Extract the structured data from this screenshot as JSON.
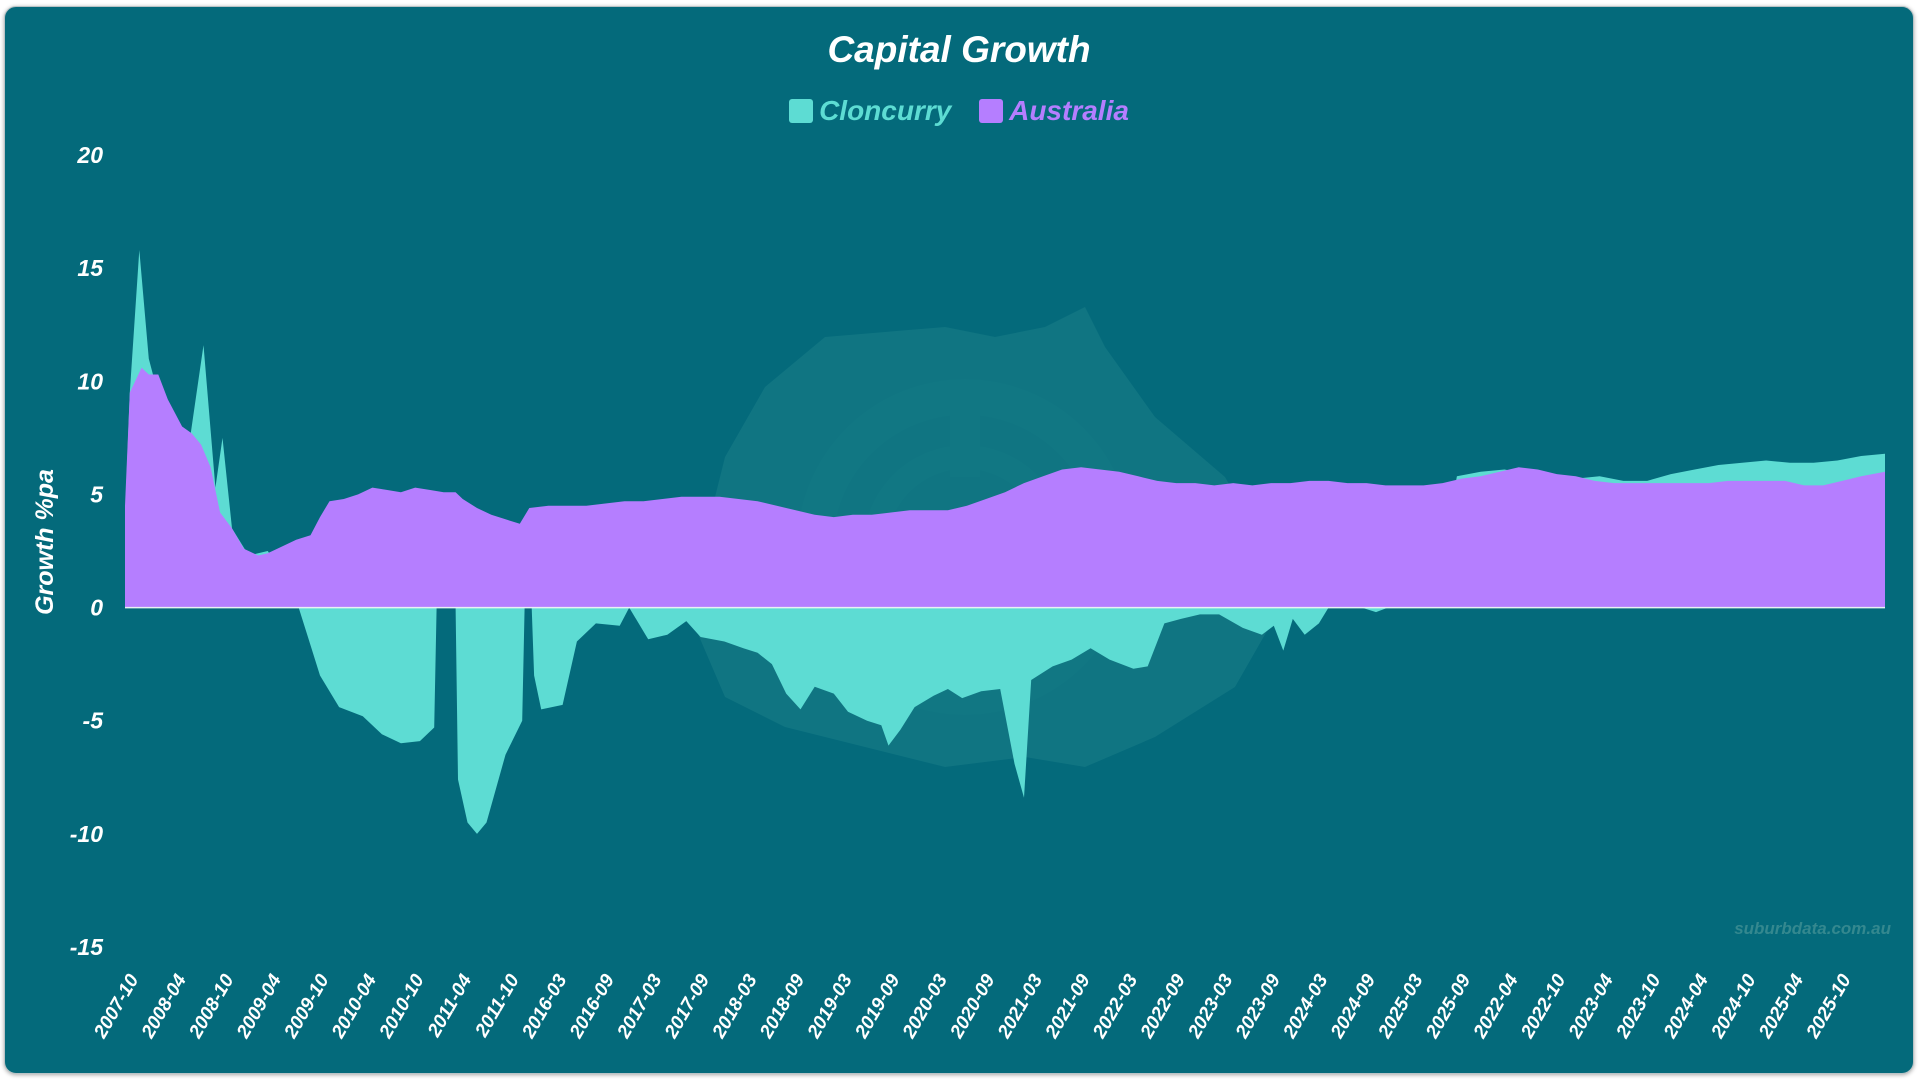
{
  "chart_data": {
    "type": "area",
    "title": "Capital Growth",
    "xlabel": "",
    "ylabel": "Growth %pa",
    "ylim": [
      -15,
      20
    ],
    "yticks": [
      20,
      15,
      10,
      5,
      0,
      -5,
      -10,
      -15
    ],
    "x_tick_labels": [
      "2007-10",
      "2008-04",
      "2008-10",
      "2009-04",
      "2009-10",
      "2010-04",
      "2010-10",
      "2011-04",
      "2011-10",
      "2016-03",
      "2016-09",
      "2017-03",
      "2017-09",
      "2018-03",
      "2018-09",
      "2019-03",
      "2019-09",
      "2020-03",
      "2020-09",
      "2021-03",
      "2021-09",
      "2022-03",
      "2022-09",
      "2023-03",
      "2023-09",
      "2024-03",
      "2024-09",
      "2025-03",
      "2025-09",
      "2022-04",
      "2022-10",
      "2023-04",
      "2023-10",
      "2024-04",
      "2024-10",
      "2025-04",
      "2025-10"
    ],
    "grid": false,
    "legend_position": "top",
    "series": [
      {
        "name": "Cloncurry",
        "color": "#5ddcd3",
        "points": [
          [
            0,
            4
          ],
          [
            0.1,
            9.5
          ],
          [
            0.3,
            15.8
          ],
          [
            0.5,
            11
          ],
          [
            0.75,
            9
          ],
          [
            1,
            7.5
          ],
          [
            1.3,
            6.5
          ],
          [
            1.65,
            11.6
          ],
          [
            1.9,
            5.3
          ],
          [
            2.05,
            7.5
          ],
          [
            2.25,
            3.5
          ],
          [
            2.6,
            2.3
          ],
          [
            3,
            2.5
          ],
          [
            3.5,
            1
          ],
          [
            3.8,
            -1
          ],
          [
            4.1,
            -3
          ],
          [
            4.5,
            -4.4
          ],
          [
            5,
            -4.8
          ],
          [
            5.4,
            -5.6
          ],
          [
            5.8,
            -6
          ],
          [
            6.2,
            -5.9
          ],
          [
            6.5,
            -5.3
          ],
          [
            6.55,
            0
          ],
          [
            6.95,
            0
          ],
          [
            7,
            -7.6
          ],
          [
            7.2,
            -9.5
          ],
          [
            7.4,
            -10
          ],
          [
            7.6,
            -9.5
          ],
          [
            8,
            -6.5
          ],
          [
            8.35,
            -5
          ],
          [
            8.4,
            0
          ],
          [
            8.55,
            0
          ],
          [
            8.6,
            -3
          ],
          [
            8.75,
            -4.5
          ],
          [
            9.2,
            -4.3
          ],
          [
            9.5,
            -1.5
          ],
          [
            9.9,
            -0.7
          ],
          [
            10.4,
            -0.8
          ],
          [
            10.6,
            0
          ],
          [
            11,
            -1.4
          ],
          [
            11.4,
            -1.2
          ],
          [
            11.8,
            -0.6
          ],
          [
            12.1,
            -1.3
          ],
          [
            12.6,
            -1.5
          ],
          [
            13,
            -1.8
          ],
          [
            13.3,
            -2
          ],
          [
            13.6,
            -2.5
          ],
          [
            13.9,
            -3.8
          ],
          [
            14.2,
            -4.5
          ],
          [
            14.5,
            -3.5
          ],
          [
            14.9,
            -3.8
          ],
          [
            15.2,
            -4.6
          ],
          [
            15.6,
            -5
          ],
          [
            15.9,
            -5.2
          ],
          [
            16.05,
            -6.1
          ],
          [
            16.3,
            -5.4
          ],
          [
            16.6,
            -4.4
          ],
          [
            17,
            -3.9
          ],
          [
            17.3,
            -3.6
          ],
          [
            17.6,
            -4
          ],
          [
            18,
            -3.7
          ],
          [
            18.4,
            -3.6
          ],
          [
            18.7,
            -6.9
          ],
          [
            18.9,
            -8.4
          ],
          [
            19.05,
            -3.2
          ],
          [
            19.5,
            -2.6
          ],
          [
            19.9,
            -2.3
          ],
          [
            20.3,
            -1.8
          ],
          [
            20.7,
            -2.3
          ],
          [
            21.2,
            -2.7
          ],
          [
            21.5,
            -2.6
          ],
          [
            21.85,
            -0.7
          ],
          [
            22.2,
            -0.5
          ],
          [
            22.6,
            -0.3
          ],
          [
            23,
            -0.3
          ],
          [
            23.5,
            -0.9
          ],
          [
            23.9,
            -1.2
          ],
          [
            24.15,
            -0.8
          ],
          [
            24.35,
            -1.9
          ],
          [
            24.55,
            -0.5
          ],
          [
            24.8,
            -1.2
          ],
          [
            25.1,
            -0.7
          ],
          [
            25.3,
            0
          ],
          [
            26,
            0
          ],
          [
            26.3,
            -0.2
          ],
          [
            26.55,
            0
          ],
          [
            27.5,
            0
          ],
          [
            28,
            5.8
          ],
          [
            28.5,
            6
          ],
          [
            29,
            6.1
          ],
          [
            29.5,
            5.9
          ],
          [
            30,
            5.7
          ],
          [
            30.5,
            5.7
          ],
          [
            31,
            5.8
          ],
          [
            31.5,
            5.6
          ],
          [
            32,
            5.6
          ],
          [
            32.5,
            5.9
          ],
          [
            33,
            6.1
          ],
          [
            33.5,
            6.3
          ],
          [
            34,
            6.4
          ],
          [
            34.5,
            6.5
          ],
          [
            35,
            6.4
          ],
          [
            35.5,
            6.4
          ],
          [
            36,
            6.5
          ],
          [
            36.5,
            6.7
          ],
          [
            37,
            6.8
          ]
        ]
      },
      {
        "name": "Australia",
        "color": "#b57eff",
        "points": [
          [
            0,
            4.5
          ],
          [
            0.1,
            9.5
          ],
          [
            0.35,
            10.6
          ],
          [
            0.5,
            10.3
          ],
          [
            0.7,
            10.3
          ],
          [
            0.9,
            9.2
          ],
          [
            1.2,
            8
          ],
          [
            1.4,
            7.7
          ],
          [
            1.6,
            7.2
          ],
          [
            1.8,
            6.2
          ],
          [
            2,
            4.2
          ],
          [
            2.25,
            3.5
          ],
          [
            2.5,
            2.6
          ],
          [
            2.8,
            2.3
          ],
          [
            3,
            2.4
          ],
          [
            3.3,
            2.7
          ],
          [
            3.6,
            3
          ],
          [
            3.9,
            3.2
          ],
          [
            4.1,
            4
          ],
          [
            4.3,
            4.7
          ],
          [
            4.6,
            4.8
          ],
          [
            4.9,
            5
          ],
          [
            5.2,
            5.3
          ],
          [
            5.5,
            5.2
          ],
          [
            5.8,
            5.1
          ],
          [
            6.1,
            5.3
          ],
          [
            6.4,
            5.2
          ],
          [
            6.7,
            5.1
          ],
          [
            6.95,
            5.1
          ],
          [
            7.1,
            4.8
          ],
          [
            7.4,
            4.4
          ],
          [
            7.7,
            4.1
          ],
          [
            8,
            3.9
          ],
          [
            8.3,
            3.7
          ],
          [
            8.5,
            4.4
          ],
          [
            8.9,
            4.5
          ],
          [
            9.3,
            4.5
          ],
          [
            9.7,
            4.5
          ],
          [
            10.1,
            4.6
          ],
          [
            10.5,
            4.7
          ],
          [
            10.9,
            4.7
          ],
          [
            11.3,
            4.8
          ],
          [
            11.7,
            4.9
          ],
          [
            12.1,
            4.9
          ],
          [
            12.5,
            4.9
          ],
          [
            12.9,
            4.8
          ],
          [
            13.3,
            4.7
          ],
          [
            13.7,
            4.5
          ],
          [
            14.1,
            4.3
          ],
          [
            14.5,
            4.1
          ],
          [
            14.9,
            4.0
          ],
          [
            15.3,
            4.1
          ],
          [
            15.7,
            4.1
          ],
          [
            16.1,
            4.2
          ],
          [
            16.5,
            4.3
          ],
          [
            16.9,
            4.3
          ],
          [
            17.3,
            4.3
          ],
          [
            17.7,
            4.5
          ],
          [
            18.1,
            4.8
          ],
          [
            18.5,
            5.1
          ],
          [
            18.9,
            5.5
          ],
          [
            19.3,
            5.8
          ],
          [
            19.7,
            6.1
          ],
          [
            20.1,
            6.2
          ],
          [
            20.5,
            6.1
          ],
          [
            20.9,
            6.0
          ],
          [
            21.3,
            5.8
          ],
          [
            21.7,
            5.6
          ],
          [
            22.1,
            5.5
          ],
          [
            22.5,
            5.5
          ],
          [
            22.9,
            5.4
          ],
          [
            23.3,
            5.5
          ],
          [
            23.7,
            5.4
          ],
          [
            24.1,
            5.5
          ],
          [
            24.5,
            5.5
          ],
          [
            24.9,
            5.6
          ],
          [
            25.3,
            5.6
          ],
          [
            25.7,
            5.5
          ],
          [
            26.1,
            5.5
          ],
          [
            26.5,
            5.4
          ],
          [
            26.9,
            5.4
          ],
          [
            27.3,
            5.4
          ],
          [
            27.7,
            5.5
          ],
          [
            28.1,
            5.7
          ],
          [
            28.5,
            5.8
          ],
          [
            28.9,
            6.0
          ],
          [
            29.3,
            6.2
          ],
          [
            29.7,
            6.1
          ],
          [
            30.1,
            5.9
          ],
          [
            30.5,
            5.8
          ],
          [
            30.9,
            5.6
          ],
          [
            31.3,
            5.5
          ],
          [
            31.7,
            5.5
          ],
          [
            32.1,
            5.5
          ],
          [
            32.5,
            5.5
          ],
          [
            32.9,
            5.5
          ],
          [
            33.3,
            5.5
          ],
          [
            33.7,
            5.6
          ],
          [
            34.1,
            5.6
          ],
          [
            34.5,
            5.6
          ],
          [
            34.9,
            5.6
          ],
          [
            35.3,
            5.4
          ],
          [
            35.7,
            5.4
          ],
          [
            36.1,
            5.6
          ],
          [
            36.5,
            5.8
          ],
          [
            37,
            6.0
          ]
        ]
      }
    ],
    "watermark": "suburbdata.com.au"
  }
}
